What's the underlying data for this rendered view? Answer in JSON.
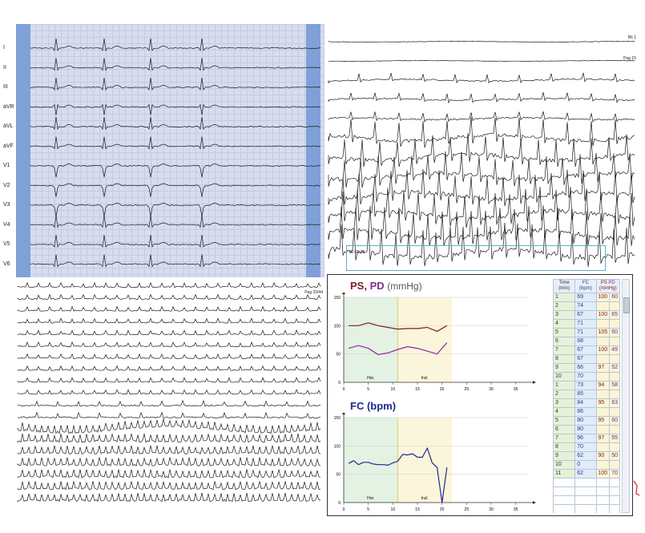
{
  "ecg12": {
    "leads": [
      "I",
      "II",
      "III",
      "aVR",
      "aVL",
      "aVF",
      "V1",
      "V2",
      "V3",
      "V4",
      "V5",
      "V6"
    ]
  },
  "rhythm": {
    "labels": [
      "Bk 1",
      "Pag 15"
    ],
    "timestamp": "00:20:36"
  },
  "long_strip": {
    "label": "Pag 33/44"
  },
  "charts": {
    "bp": {
      "title_ps": "PS,",
      "title_pd": "PD",
      "title_unit": "(mmHg)",
      "y_ticks": [
        "150",
        "100",
        "50",
        "0"
      ],
      "x_ticks": [
        "0",
        "5",
        "10",
        "15",
        "20",
        "25",
        "30",
        "35"
      ],
      "phase1": "Hor.",
      "phase2": "Incl.",
      "colors": {
        "ps": "#7b1f1f",
        "pd": "#8a2a9a",
        "phase1": "#e3f2e3",
        "phase2": "#fbf5dc"
      }
    },
    "fc": {
      "title": "FC (bpm)",
      "y_ticks": [
        "150",
        "100",
        "50",
        "0"
      ],
      "x_ticks": [
        "0",
        "5",
        "10",
        "15",
        "20",
        "25",
        "30",
        "35"
      ],
      "phase1": "Hor.",
      "phase2": "Incl.",
      "colors": {
        "fc": "#1e2a8c"
      }
    }
  },
  "table": {
    "headers": {
      "time": "Time (min)",
      "fc": "FC (bpm)",
      "ps": "PS",
      "pd": "PD",
      "mmhg": "(mmHg)"
    },
    "rows": [
      [
        "1",
        "69",
        "100",
        "60"
      ],
      [
        "2",
        "74",
        "",
        ""
      ],
      [
        "3",
        "67",
        "100",
        "65"
      ],
      [
        "4",
        "71",
        "",
        ""
      ],
      [
        "5",
        "71",
        "105",
        "60"
      ],
      [
        "6",
        "68",
        "",
        ""
      ],
      [
        "7",
        "67",
        "100",
        "49"
      ],
      [
        "8",
        "67",
        "",
        ""
      ],
      [
        "9",
        "66",
        "97",
        "52"
      ],
      [
        "10",
        "70",
        "",
        ""
      ],
      [
        "1",
        "73",
        "94",
        "58"
      ],
      [
        "2",
        "85",
        "",
        ""
      ],
      [
        "3",
        "84",
        "95",
        "63"
      ],
      [
        "4",
        "86",
        "",
        ""
      ],
      [
        "5",
        "80",
        "95",
        "60"
      ],
      [
        "6",
        "80",
        "",
        ""
      ],
      [
        "7",
        "96",
        "97",
        "55"
      ],
      [
        "8",
        "70",
        "",
        ""
      ],
      [
        "9",
        "62",
        "90",
        "50"
      ],
      [
        "10",
        "0",
        "",
        ""
      ],
      [
        "11",
        "62",
        "100",
        "70"
      ]
    ]
  }
}
